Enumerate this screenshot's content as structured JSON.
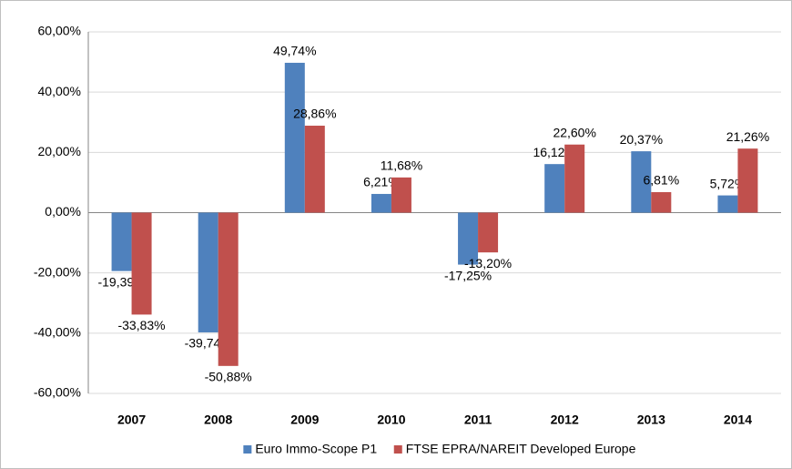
{
  "chart_data": {
    "type": "bar",
    "categories": [
      "2007",
      "2008",
      "2009",
      "2010",
      "2011",
      "2012",
      "2013",
      "2014"
    ],
    "series": [
      {
        "name": "Euro Immo-Scope P1",
        "color": "#4f81bd",
        "values": [
          -19.39,
          -39.74,
          49.74,
          6.21,
          -17.25,
          16.12,
          20.37,
          5.72
        ],
        "value_labels": [
          "-19,39%",
          "-39,74%",
          "49,74%",
          "6,21%",
          "-17,25%",
          "16,12%",
          "20,37%",
          "5,72%"
        ]
      },
      {
        "name": "FTSE EPRA/NAREIT Developed Europe",
        "color": "#c0504d",
        "values": [
          -33.83,
          -50.88,
          28.86,
          11.68,
          -13.2,
          22.6,
          6.81,
          21.26
        ],
        "value_labels": [
          "-33,83%",
          "-50,88%",
          "28,86%",
          "11,68%",
          "-13,20%",
          "22,60%",
          "6,81%",
          "21,26%"
        ]
      }
    ],
    "ylim": [
      -60,
      60
    ],
    "yticks": [
      {
        "value": -60,
        "label": "-60,00%"
      },
      {
        "value": -40,
        "label": "-40,00%"
      },
      {
        "value": -20,
        "label": "-20,00%"
      },
      {
        "value": 0,
        "label": "0,00%"
      },
      {
        "value": 20,
        "label": "20,00%"
      },
      {
        "value": 40,
        "label": "40,00%"
      },
      {
        "value": 60,
        "label": "60,00%"
      }
    ],
    "grid": true,
    "legend": "bottom"
  }
}
